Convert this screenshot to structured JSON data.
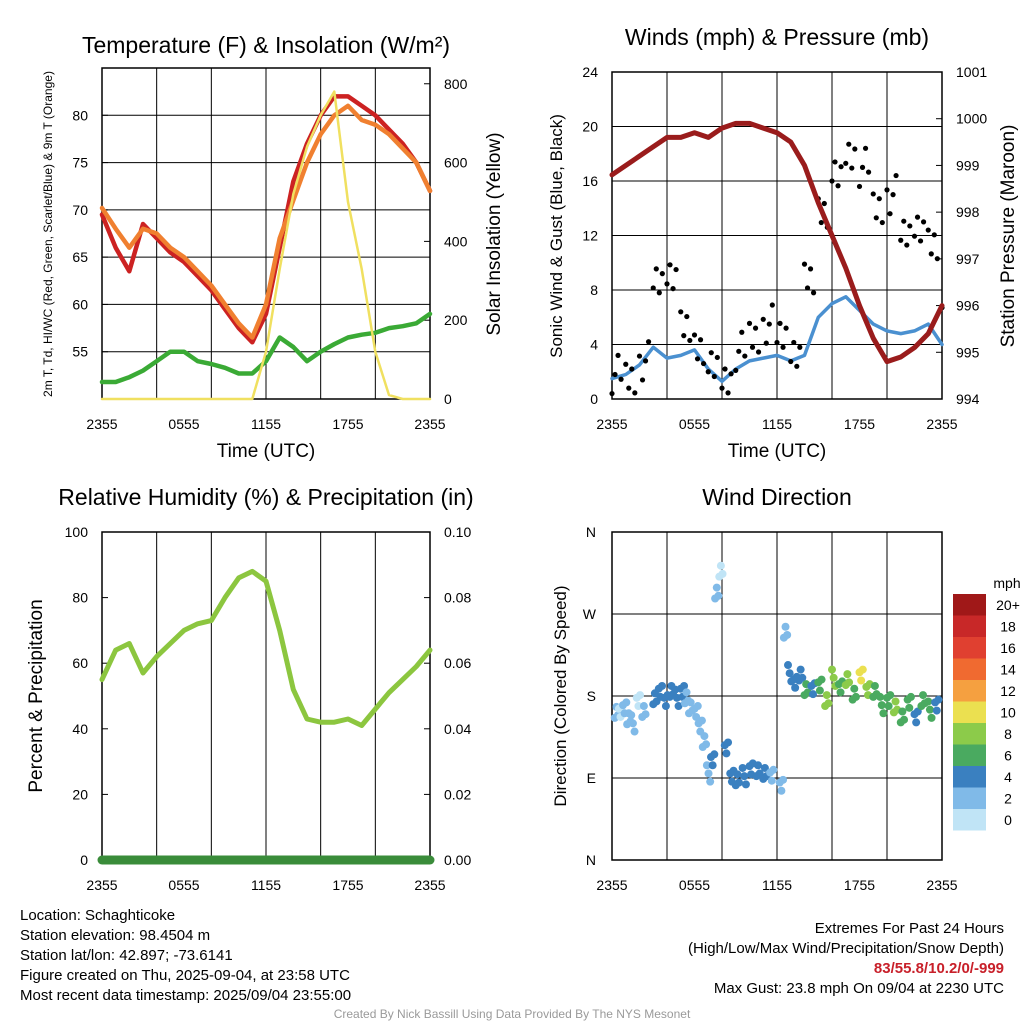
{
  "chart_data": [
    {
      "type": "line",
      "title": "Temperature (F) & Insolation (W/m²)",
      "xlabel": "Time (UTC)",
      "ylabel": "2m T, Td, HI/WC (Red, Green, Scarlet/Blue) & 9m T (Orange)",
      "y2label": "Solar Insolation (Yellow)",
      "ylim": [
        50,
        85
      ],
      "y2lim": [
        0,
        840
      ],
      "x_ticks": [
        "2355",
        "0555",
        "1155",
        "1755",
        "2355"
      ],
      "y_ticks": [
        55,
        60,
        65,
        70,
        75,
        80
      ],
      "y2_ticks": [
        0,
        200,
        400,
        600,
        800
      ],
      "x_hours": [
        0,
        1,
        2,
        3,
        4,
        5,
        6,
        7,
        8,
        9,
        10,
        11,
        12,
        13,
        14,
        15,
        16,
        17,
        18,
        19,
        20,
        21,
        22,
        23,
        24
      ],
      "series": [
        {
          "color": "#cc2222",
          "values": [
            69.5,
            66,
            63.5,
            68.5,
            67,
            65.5,
            64.5,
            63,
            61.5,
            59.5,
            57.5,
            56,
            59,
            66,
            73,
            77,
            80,
            82,
            82,
            81,
            80,
            78.5,
            77,
            75,
            72
          ],
          "role": "2m T"
        },
        {
          "color": "#f08030",
          "values": [
            70.2,
            68,
            66,
            68,
            67.5,
            66,
            65,
            63.5,
            62,
            60,
            58,
            56.5,
            60,
            67,
            71,
            75,
            78,
            80,
            81,
            79.5,
            79,
            78,
            76.5,
            75,
            72
          ],
          "role": "9m T"
        },
        {
          "color": "#3aaa35",
          "values": [
            51.8,
            51.8,
            52.3,
            53,
            54,
            55,
            55,
            54,
            53.7,
            53.3,
            52.7,
            52.7,
            54,
            56.5,
            55.5,
            54,
            55,
            55.8,
            56.5,
            56.8,
            57,
            57.5,
            57.7,
            58,
            59
          ],
          "role": "Td"
        },
        {
          "color": "#f0e060",
          "axis": "y2",
          "values": [
            0,
            0,
            0,
            0,
            0,
            0,
            0,
            0,
            0,
            0,
            0,
            0,
            120,
            330,
            520,
            640,
            720,
            780,
            500,
            330,
            120,
            10,
            0,
            0,
            0
          ],
          "role": "Solar"
        }
      ]
    },
    {
      "type": "line",
      "title": "Winds (mph) & Pressure (mb)",
      "xlabel": "Time (UTC)",
      "ylabel": "Sonic Wind & Gust (Blue, Black)",
      "y2label": "Station Pressure (Maroon)",
      "ylim": [
        0,
        24
      ],
      "y2lim": [
        994,
        1001
      ],
      "x_ticks": [
        "2355",
        "0555",
        "1155",
        "1755",
        "2355"
      ],
      "y_ticks": [
        0,
        4,
        8,
        12,
        16,
        20,
        24
      ],
      "y2_ticks": [
        994,
        995,
        996,
        997,
        998,
        999,
        1000,
        1001
      ],
      "x_hours": [
        0,
        1,
        2,
        3,
        4,
        5,
        6,
        7,
        8,
        9,
        10,
        11,
        12,
        13,
        14,
        15,
        16,
        17,
        18,
        19,
        20,
        21,
        22,
        23,
        24
      ],
      "series": [
        {
          "color": "#4a90d0",
          "values": [
            1.5,
            1.8,
            2.5,
            3.8,
            3.0,
            3.2,
            3.6,
            2.2,
            1.3,
            2.2,
            2.8,
            3.0,
            3.2,
            2.8,
            3.2,
            6.0,
            7.0,
            7.5,
            6.5,
            5.5,
            5.0,
            4.8,
            5.0,
            5.5,
            4.0
          ],
          "role": "wind"
        },
        {
          "color": "#000000",
          "style": "points",
          "values": [
            1.8,
            1.5,
            2.8,
            8.5,
            9.5,
            5.0,
            4.0,
            2.0,
            1.5,
            3.5,
            4.5,
            5.5,
            4.5,
            3.8,
            8.5,
            14,
            16,
            18,
            17,
            14,
            15,
            12,
            13,
            11,
            6.0
          ],
          "role": "gust"
        },
        {
          "color": "#9a1c1c",
          "axis": "y2",
          "values": [
            998.8,
            999.0,
            999.2,
            999.4,
            999.6,
            999.6,
            999.7,
            999.6,
            999.8,
            999.9,
            999.9,
            999.8,
            999.7,
            999.5,
            999.0,
            998.2,
            997.5,
            996.8,
            996.0,
            995.3,
            994.8,
            994.9,
            995.1,
            995.4,
            996.0
          ],
          "role": "pressure"
        }
      ]
    },
    {
      "type": "line",
      "title": "Relative Humidity (%) & Precipitation (in)",
      "xlabel": "",
      "ylabel": "Percent & Precipitation",
      "ylim": [
        0,
        100
      ],
      "y2lim": [
        0,
        0.1
      ],
      "x_ticks": [
        "2355",
        "0555",
        "1155",
        "1755",
        "2355"
      ],
      "y_ticks": [
        0,
        20,
        40,
        60,
        80,
        100
      ],
      "y2_ticks": [
        "0.00",
        "0.02",
        "0.04",
        "0.06",
        "0.08",
        "0.10"
      ],
      "x_hours": [
        0,
        1,
        2,
        3,
        4,
        5,
        6,
        7,
        8,
        9,
        10,
        11,
        12,
        13,
        14,
        15,
        16,
        17,
        18,
        19,
        20,
        21,
        22,
        23,
        24
      ],
      "series": [
        {
          "color": "#8cc63f",
          "values": [
            55,
            64,
            66,
            57,
            62,
            66,
            70,
            72,
            73,
            80,
            86,
            88,
            85,
            70,
            52,
            43,
            42,
            42,
            43,
            41,
            46,
            51,
            55,
            59,
            64
          ],
          "role": "RH"
        },
        {
          "color": "#3a8c3a",
          "axis": "y2",
          "values": [
            0,
            0,
            0,
            0,
            0,
            0,
            0,
            0,
            0,
            0,
            0,
            0,
            0,
            0,
            0,
            0,
            0,
            0,
            0,
            0,
            0,
            0,
            0,
            0,
            0
          ],
          "role": "precip"
        }
      ]
    },
    {
      "type": "scatter",
      "title": "Wind Direction",
      "xlabel": "",
      "ylabel": "Direction (Colored By Speed)",
      "x_ticks": [
        "2355",
        "0555",
        "1155",
        "1755",
        "2355"
      ],
      "y_ticks": [
        "N",
        "E",
        "S",
        "W",
        "N"
      ],
      "ylim": [
        0,
        360
      ],
      "x_hours": [
        0.2,
        0.5,
        0.8,
        1.1,
        1.4,
        1.8,
        2.2,
        3.0,
        3.4,
        3.8,
        4.2,
        4.6,
        5.0,
        5.3,
        5.6,
        6.0,
        6.3,
        6.6,
        6.9,
        7.2,
        7.5,
        7.8,
        8.2,
        8.6,
        9.0,
        9.5,
        10.0,
        10.5,
        11.0,
        11.5,
        12.2,
        12.5,
        12.8,
        13.2,
        13.6,
        14.0,
        14.5,
        15.0,
        15.5,
        16.0,
        16.5,
        17.0,
        17.5,
        18.0,
        18.5,
        19.0,
        19.5,
        20.0,
        20.5,
        21.0,
        21.5,
        22.0,
        22.5,
        23.0,
        23.5
      ],
      "directions": [
        165,
        160,
        170,
        155,
        150,
        175,
        160,
        180,
        182,
        178,
        185,
        178,
        185,
        175,
        170,
        160,
        150,
        130,
        95,
        110,
        290,
        320,
        120,
        95,
        88,
        92,
        100,
        95,
        98,
        90,
        85,
        250,
        205,
        195,
        200,
        190,
        185,
        195,
        175,
        200,
        190,
        195,
        185,
        200,
        190,
        185,
        170,
        175,
        165,
        160,
        170,
        160,
        175,
        165,
        170
      ],
      "speeds": [
        1,
        0,
        1,
        2,
        1,
        0,
        1,
        4,
        3,
        4,
        3,
        4,
        3,
        2,
        2,
        2,
        1,
        1,
        1,
        3,
        1,
        0,
        3,
        3,
        4,
        3,
        4,
        4,
        3,
        2,
        1,
        2,
        3,
        4,
        3,
        5,
        4,
        6,
        7,
        8,
        5,
        7,
        6,
        10,
        8,
        6,
        5,
        6,
        7,
        5,
        6,
        4,
        5,
        6,
        4
      ],
      "legend": {
        "title": "mph",
        "labels": [
          "20+",
          "18",
          "16",
          "14",
          "12",
          "10",
          "8",
          "6",
          "4",
          "2",
          "0"
        ],
        "colors": [
          "#a01818",
          "#c82828",
          "#e04030",
          "#f06a30",
          "#f5a040",
          "#ebe050",
          "#8ccb4a",
          "#4aaa60",
          "#3a80c0",
          "#80bae8",
          "#c0e4f6"
        ]
      }
    }
  ],
  "info": {
    "location": "Location: Schaghticoke",
    "elevation": "Station elevation: 98.4504 m",
    "latlon": "Station lat/lon: 42.897; -73.6141",
    "created": "Figure created on Thu, 2025-09-04, at 23:58 UTC",
    "recent": "Most recent data timestamp: 2025/09/04 23:55:00"
  },
  "extremes": {
    "heading": "Extremes For Past 24 Hours",
    "subheading": "(High/Low/Max Wind/Precipitation/Snow Depth)",
    "values": "83/55.8/10.2/0/-999",
    "gust": "Max Gust: 23.8 mph On 09/04 at 2230 UTC"
  },
  "credit": "Created By Nick Bassill Using Data Provided By The NYS Mesonet"
}
